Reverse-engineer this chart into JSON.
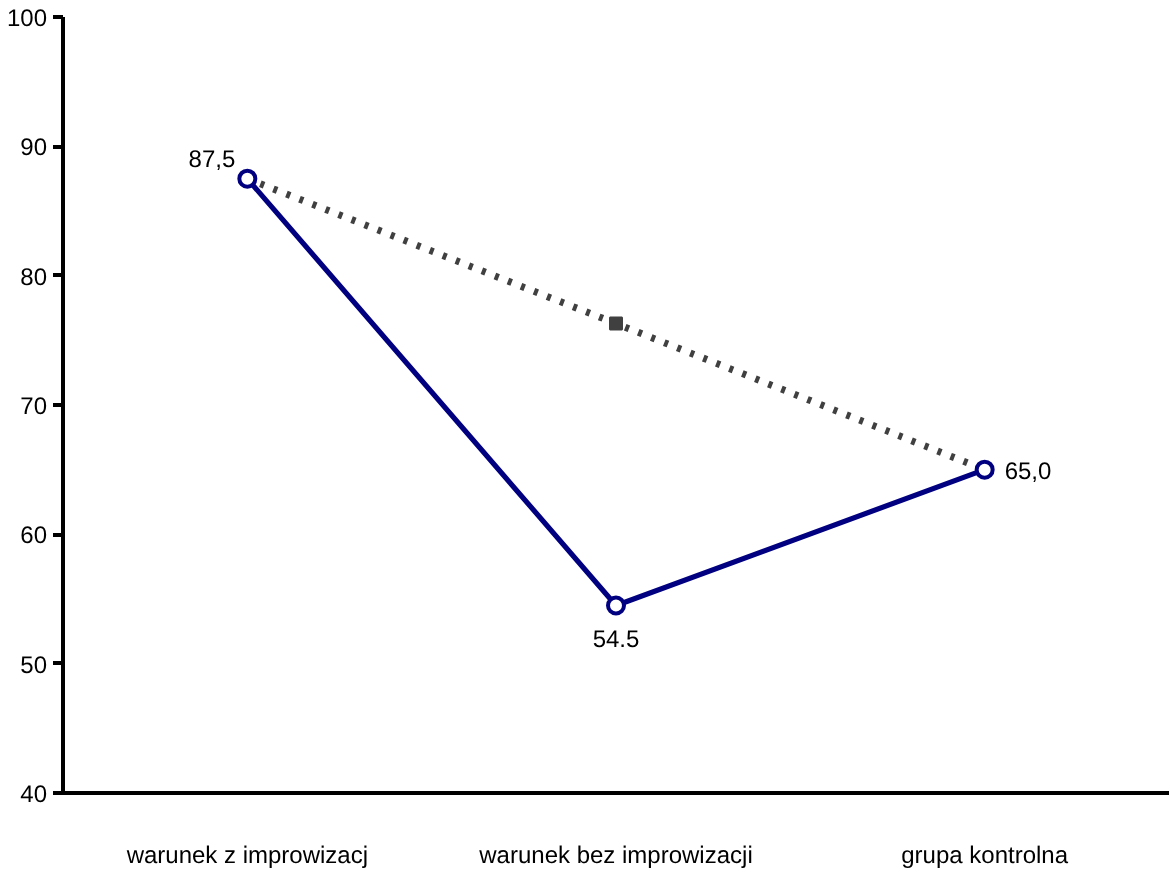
{
  "chart_data": {
    "type": "line",
    "categories": [
      "warunek z improwizacj",
      "warunek bez improwizacji",
      "grupa kontrolna"
    ],
    "series": [
      {
        "color": "#000080",
        "values": [
          87.5,
          54.5,
          65.0
        ],
        "value_labels": [
          "87,5",
          "54.5",
          "65,0"
        ],
        "marker": "circle",
        "line_style": "solid"
      },
      {
        "color": "#404040",
        "values": [
          87.5,
          76.3,
          65.0
        ],
        "marker": "square",
        "line_style": "dotted"
      }
    ],
    "ylim": [
      40,
      100
    ],
    "yticks": [
      40,
      50,
      60,
      70,
      80,
      90,
      100
    ],
    "grid": false
  }
}
